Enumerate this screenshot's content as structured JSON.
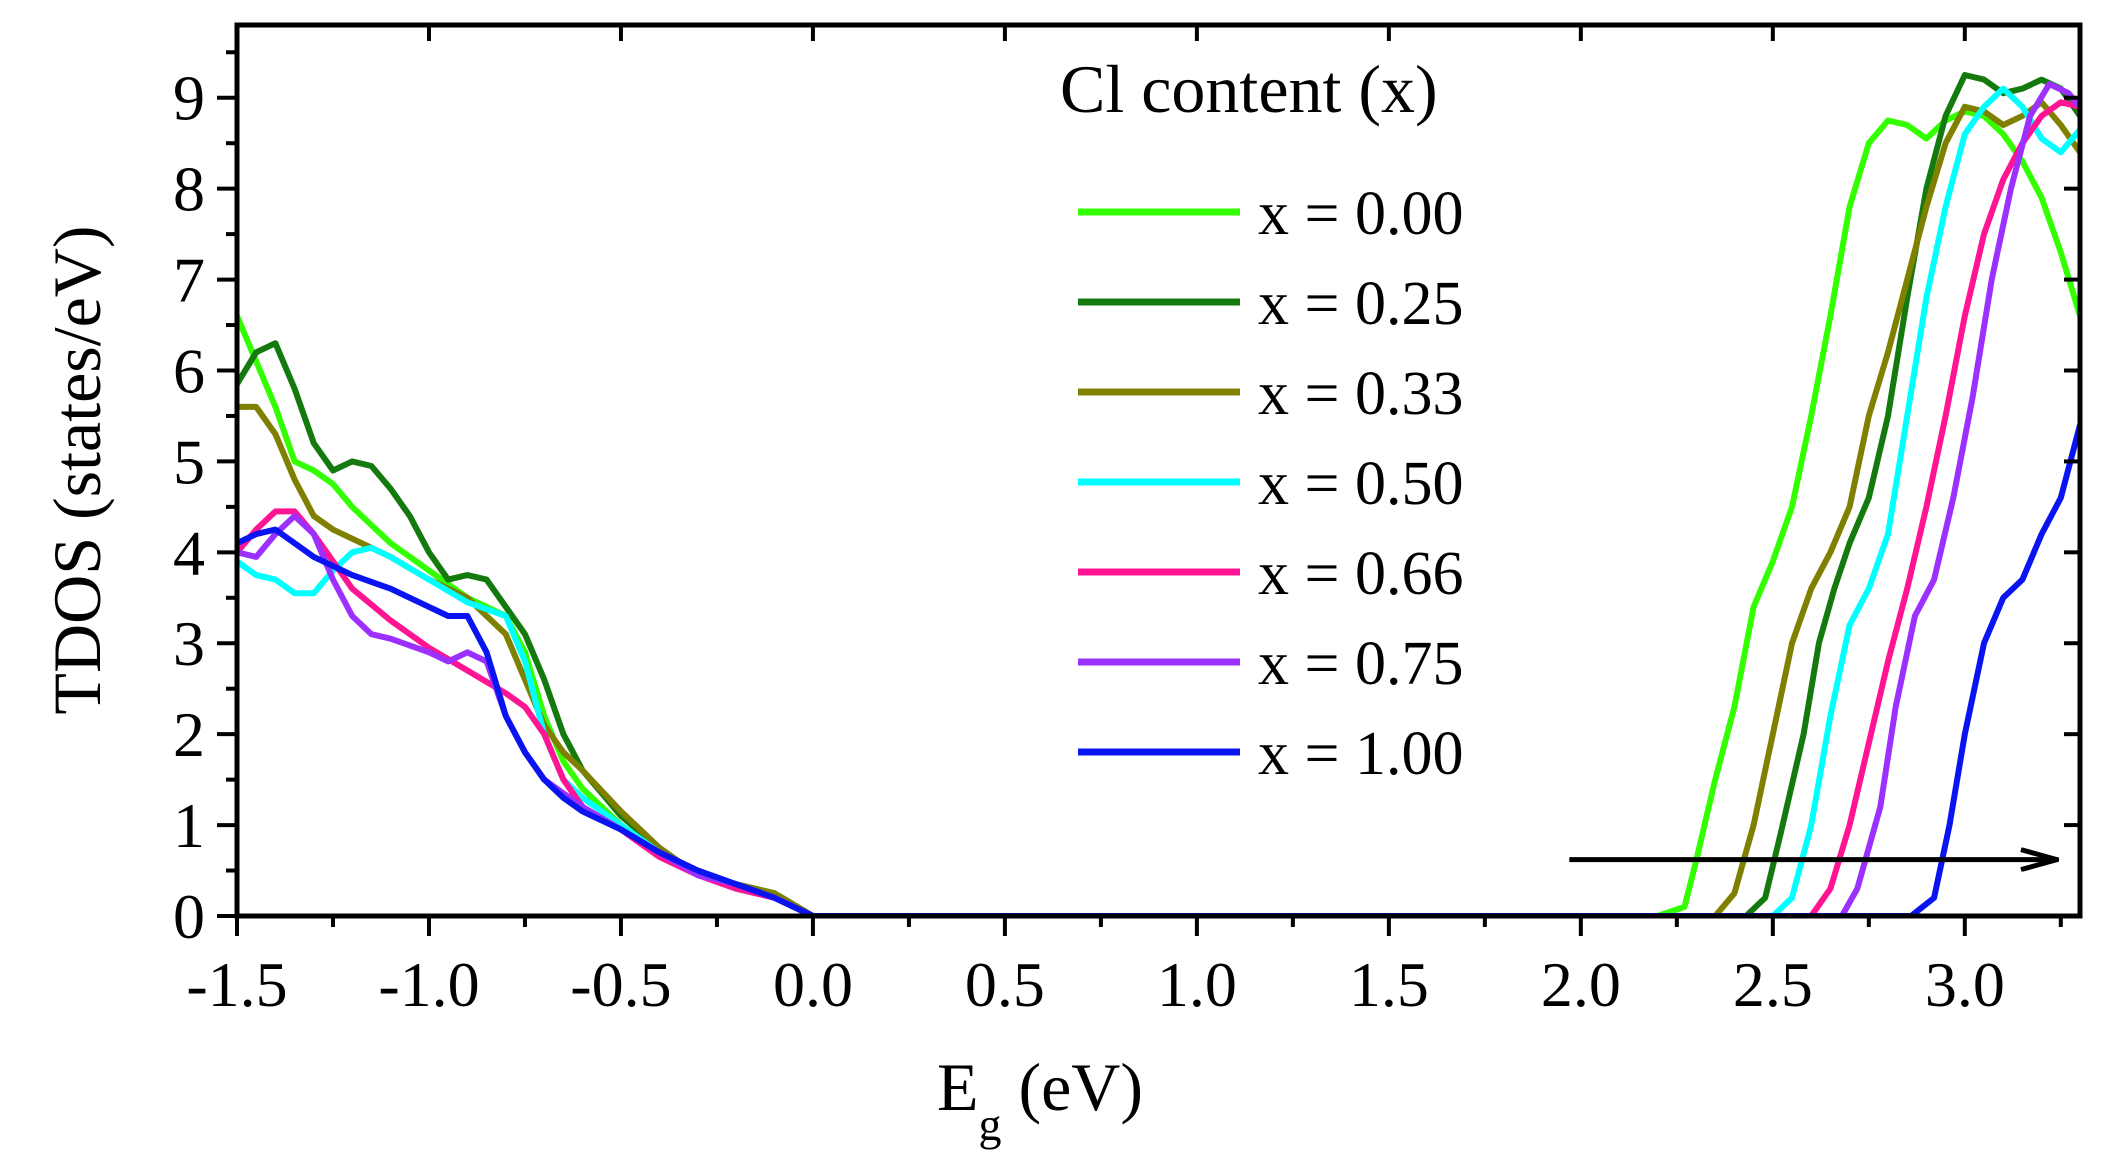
{
  "chart_data": {
    "type": "line",
    "xlabel_main": "E",
    "xlabel_sub": "g",
    "xlabel_unit": " (eV)",
    "ylabel": "TDOS (states/eV)",
    "xlim": [
      -1.5,
      3.3
    ],
    "ylim": [
      0,
      9.8
    ],
    "x_ticks": [
      -1.5,
      -1.0,
      -0.5,
      0.0,
      0.5,
      1.0,
      1.5,
      2.0,
      2.5,
      3.0
    ],
    "x_tick_labels": [
      "-1.5",
      "-1.0",
      "-0.5",
      "0.0",
      "0.5",
      "1.0",
      "1.5",
      "2.0",
      "2.5",
      "3.0"
    ],
    "x_minor_ticks": [
      -1.25,
      -0.75,
      -0.25,
      0.25,
      0.75,
      1.25,
      1.75,
      2.25,
      2.75,
      3.25
    ],
    "y_ticks": [
      0,
      1,
      2,
      3,
      4,
      5,
      6,
      7,
      8,
      9
    ],
    "y_tick_labels": [
      "0",
      "1",
      "2",
      "3",
      "4",
      "5",
      "6",
      "7",
      "8",
      "9"
    ],
    "y_minor_ticks": [
      0.5,
      1.5,
      2.5,
      3.5,
      4.5,
      5.5,
      6.5,
      7.5,
      8.5,
      9.5
    ],
    "legend_title": "Cl content (x)",
    "legend_position": "top-center",
    "annotation": {
      "type": "arrow",
      "from": [
        1.97,
        0.62
      ],
      "to": [
        3.24,
        0.62
      ],
      "color": "#000000"
    },
    "series": [
      {
        "name": "x = 0.00",
        "color": "#33ff00",
        "points": [
          [
            -1.5,
            6.6
          ],
          [
            -1.45,
            6.1
          ],
          [
            -1.4,
            5.6
          ],
          [
            -1.35,
            5.0
          ],
          [
            -1.3,
            4.9
          ],
          [
            -1.25,
            4.75
          ],
          [
            -1.2,
            4.5
          ],
          [
            -1.1,
            4.1
          ],
          [
            -1.0,
            3.8
          ],
          [
            -0.9,
            3.5
          ],
          [
            -0.8,
            3.3
          ],
          [
            -0.75,
            2.9
          ],
          [
            -0.7,
            2.2
          ],
          [
            -0.65,
            1.7
          ],
          [
            -0.6,
            1.4
          ],
          [
            -0.5,
            1.0
          ],
          [
            -0.4,
            0.7
          ],
          [
            -0.3,
            0.45
          ],
          [
            -0.2,
            0.35
          ],
          [
            -0.1,
            0.2
          ],
          [
            0.0,
            0.0
          ],
          [
            2.2,
            0.0
          ],
          [
            2.27,
            0.1
          ],
          [
            2.3,
            0.6
          ],
          [
            2.35,
            1.5
          ],
          [
            2.4,
            2.3
          ],
          [
            2.45,
            3.4
          ],
          [
            2.5,
            3.9
          ],
          [
            2.55,
            4.5
          ],
          [
            2.6,
            5.5
          ],
          [
            2.65,
            6.6
          ],
          [
            2.7,
            7.8
          ],
          [
            2.75,
            8.5
          ],
          [
            2.8,
            8.75
          ],
          [
            2.85,
            8.7
          ],
          [
            2.9,
            8.55
          ],
          [
            2.95,
            8.75
          ],
          [
            3.0,
            8.85
          ],
          [
            3.05,
            8.8
          ],
          [
            3.1,
            8.6
          ],
          [
            3.15,
            8.3
          ],
          [
            3.2,
            7.9
          ],
          [
            3.25,
            7.3
          ],
          [
            3.3,
            6.6
          ]
        ]
      },
      {
        "name": "x = 0.25",
        "color": "#157a0e",
        "points": [
          [
            -1.5,
            5.85
          ],
          [
            -1.45,
            6.2
          ],
          [
            -1.4,
            6.3
          ],
          [
            -1.35,
            5.8
          ],
          [
            -1.3,
            5.2
          ],
          [
            -1.25,
            4.9
          ],
          [
            -1.2,
            5.0
          ],
          [
            -1.15,
            4.95
          ],
          [
            -1.1,
            4.7
          ],
          [
            -1.05,
            4.4
          ],
          [
            -1.0,
            4.0
          ],
          [
            -0.95,
            3.7
          ],
          [
            -0.9,
            3.75
          ],
          [
            -0.85,
            3.7
          ],
          [
            -0.8,
            3.4
          ],
          [
            -0.75,
            3.1
          ],
          [
            -0.7,
            2.6
          ],
          [
            -0.65,
            2.0
          ],
          [
            -0.6,
            1.6
          ],
          [
            -0.5,
            1.1
          ],
          [
            -0.4,
            0.75
          ],
          [
            -0.3,
            0.45
          ],
          [
            -0.2,
            0.35
          ],
          [
            -0.1,
            0.25
          ],
          [
            0.0,
            0.0
          ],
          [
            2.43,
            0.0
          ],
          [
            2.48,
            0.2
          ],
          [
            2.52,
            0.9
          ],
          [
            2.58,
            2.0
          ],
          [
            2.62,
            3.0
          ],
          [
            2.66,
            3.6
          ],
          [
            2.7,
            4.1
          ],
          [
            2.75,
            4.6
          ],
          [
            2.8,
            5.5
          ],
          [
            2.85,
            6.8
          ],
          [
            2.9,
            8.0
          ],
          [
            2.95,
            8.8
          ],
          [
            3.0,
            9.25
          ],
          [
            3.05,
            9.2
          ],
          [
            3.1,
            9.05
          ],
          [
            3.15,
            9.1
          ],
          [
            3.2,
            9.2
          ],
          [
            3.25,
            9.1
          ],
          [
            3.3,
            8.8
          ]
        ]
      },
      {
        "name": "x = 0.33",
        "color": "#808000",
        "points": [
          [
            -1.5,
            5.6
          ],
          [
            -1.45,
            5.6
          ],
          [
            -1.4,
            5.3
          ],
          [
            -1.35,
            4.8
          ],
          [
            -1.3,
            4.4
          ],
          [
            -1.25,
            4.25
          ],
          [
            -1.2,
            4.15
          ],
          [
            -1.1,
            3.95
          ],
          [
            -1.0,
            3.7
          ],
          [
            -0.9,
            3.5
          ],
          [
            -0.8,
            3.1
          ],
          [
            -0.75,
            2.6
          ],
          [
            -0.7,
            2.1
          ],
          [
            -0.65,
            1.8
          ],
          [
            -0.6,
            1.6
          ],
          [
            -0.5,
            1.15
          ],
          [
            -0.4,
            0.75
          ],
          [
            -0.3,
            0.45
          ],
          [
            -0.2,
            0.35
          ],
          [
            -0.1,
            0.25
          ],
          [
            0.0,
            0.0
          ],
          [
            2.35,
            0.0
          ],
          [
            2.4,
            0.25
          ],
          [
            2.45,
            1.0
          ],
          [
            2.5,
            2.0
          ],
          [
            2.55,
            3.0
          ],
          [
            2.6,
            3.6
          ],
          [
            2.65,
            4.0
          ],
          [
            2.7,
            4.5
          ],
          [
            2.75,
            5.5
          ],
          [
            2.8,
            6.2
          ],
          [
            2.85,
            7.0
          ],
          [
            2.9,
            7.8
          ],
          [
            2.95,
            8.5
          ],
          [
            3.0,
            8.9
          ],
          [
            3.05,
            8.85
          ],
          [
            3.1,
            8.7
          ],
          [
            3.15,
            8.8
          ],
          [
            3.2,
            8.95
          ],
          [
            3.25,
            8.7
          ],
          [
            3.3,
            8.4
          ]
        ]
      },
      {
        "name": "x = 0.50",
        "color": "#00ffff",
        "points": [
          [
            -1.5,
            3.9
          ],
          [
            -1.45,
            3.75
          ],
          [
            -1.4,
            3.7
          ],
          [
            -1.35,
            3.55
          ],
          [
            -1.3,
            3.55
          ],
          [
            -1.25,
            3.8
          ],
          [
            -1.2,
            4.0
          ],
          [
            -1.15,
            4.05
          ],
          [
            -1.1,
            3.95
          ],
          [
            -1.0,
            3.7
          ],
          [
            -0.9,
            3.45
          ],
          [
            -0.8,
            3.3
          ],
          [
            -0.75,
            2.8
          ],
          [
            -0.7,
            2.0
          ],
          [
            -0.65,
            1.5
          ],
          [
            -0.6,
            1.3
          ],
          [
            -0.5,
            1.0
          ],
          [
            -0.4,
            0.7
          ],
          [
            -0.3,
            0.45
          ],
          [
            -0.2,
            0.3
          ],
          [
            -0.1,
            0.2
          ],
          [
            0.0,
            0.0
          ],
          [
            2.5,
            0.0
          ],
          [
            2.55,
            0.2
          ],
          [
            2.6,
            1.0
          ],
          [
            2.65,
            2.2
          ],
          [
            2.7,
            3.2
          ],
          [
            2.75,
            3.6
          ],
          [
            2.8,
            4.2
          ],
          [
            2.85,
            5.5
          ],
          [
            2.9,
            6.8
          ],
          [
            2.95,
            7.8
          ],
          [
            3.0,
            8.6
          ],
          [
            3.05,
            8.9
          ],
          [
            3.1,
            9.1
          ],
          [
            3.15,
            8.9
          ],
          [
            3.2,
            8.55
          ],
          [
            3.25,
            8.4
          ],
          [
            3.3,
            8.65
          ]
        ]
      },
      {
        "name": "x = 0.66",
        "color": "#ff1493",
        "points": [
          [
            -1.5,
            4.0
          ],
          [
            -1.45,
            4.25
          ],
          [
            -1.4,
            4.45
          ],
          [
            -1.35,
            4.45
          ],
          [
            -1.3,
            4.2
          ],
          [
            -1.25,
            3.9
          ],
          [
            -1.2,
            3.6
          ],
          [
            -1.1,
            3.25
          ],
          [
            -1.0,
            2.95
          ],
          [
            -0.9,
            2.7
          ],
          [
            -0.8,
            2.45
          ],
          [
            -0.75,
            2.3
          ],
          [
            -0.7,
            2.0
          ],
          [
            -0.65,
            1.5
          ],
          [
            -0.6,
            1.2
          ],
          [
            -0.5,
            0.95
          ],
          [
            -0.4,
            0.65
          ],
          [
            -0.3,
            0.45
          ],
          [
            -0.2,
            0.3
          ],
          [
            -0.1,
            0.2
          ],
          [
            0.0,
            0.0
          ],
          [
            2.6,
            0.0
          ],
          [
            2.65,
            0.3
          ],
          [
            2.7,
            1.0
          ],
          [
            2.75,
            1.9
          ],
          [
            2.8,
            2.8
          ],
          [
            2.85,
            3.6
          ],
          [
            2.9,
            4.5
          ],
          [
            2.95,
            5.5
          ],
          [
            3.0,
            6.6
          ],
          [
            3.05,
            7.5
          ],
          [
            3.1,
            8.1
          ],
          [
            3.15,
            8.5
          ],
          [
            3.2,
            8.8
          ],
          [
            3.25,
            8.95
          ],
          [
            3.3,
            8.9
          ]
        ]
      },
      {
        "name": "x = 0.75",
        "color": "#9b30ff",
        "points": [
          [
            -1.5,
            4.0
          ],
          [
            -1.45,
            3.95
          ],
          [
            -1.4,
            4.2
          ],
          [
            -1.35,
            4.4
          ],
          [
            -1.3,
            4.2
          ],
          [
            -1.25,
            3.7
          ],
          [
            -1.2,
            3.3
          ],
          [
            -1.15,
            3.1
          ],
          [
            -1.1,
            3.05
          ],
          [
            -1.0,
            2.9
          ],
          [
            -0.95,
            2.8
          ],
          [
            -0.9,
            2.9
          ],
          [
            -0.85,
            2.8
          ],
          [
            -0.8,
            2.2
          ],
          [
            -0.75,
            1.8
          ],
          [
            -0.7,
            1.5
          ],
          [
            -0.6,
            1.2
          ],
          [
            -0.5,
            0.95
          ],
          [
            -0.4,
            0.7
          ],
          [
            -0.3,
            0.45
          ],
          [
            -0.2,
            0.35
          ],
          [
            -0.1,
            0.2
          ],
          [
            0.0,
            0.0
          ],
          [
            2.68,
            0.0
          ],
          [
            2.72,
            0.3
          ],
          [
            2.78,
            1.2
          ],
          [
            2.82,
            2.3
          ],
          [
            2.87,
            3.3
          ],
          [
            2.92,
            3.7
          ],
          [
            2.97,
            4.6
          ],
          [
            3.02,
            5.7
          ],
          [
            3.07,
            7.0
          ],
          [
            3.12,
            8.0
          ],
          [
            3.17,
            8.8
          ],
          [
            3.22,
            9.15
          ],
          [
            3.27,
            9.05
          ],
          [
            3.3,
            8.9
          ]
        ]
      },
      {
        "name": "x = 1.00",
        "color": "#0a14f0",
        "points": [
          [
            -1.5,
            4.1
          ],
          [
            -1.45,
            4.2
          ],
          [
            -1.4,
            4.25
          ],
          [
            -1.35,
            4.1
          ],
          [
            -1.3,
            3.95
          ],
          [
            -1.2,
            3.75
          ],
          [
            -1.1,
            3.6
          ],
          [
            -1.0,
            3.4
          ],
          [
            -0.95,
            3.3
          ],
          [
            -0.9,
            3.3
          ],
          [
            -0.85,
            2.9
          ],
          [
            -0.8,
            2.2
          ],
          [
            -0.75,
            1.8
          ],
          [
            -0.7,
            1.5
          ],
          [
            -0.65,
            1.3
          ],
          [
            -0.6,
            1.15
          ],
          [
            -0.5,
            0.95
          ],
          [
            -0.4,
            0.7
          ],
          [
            -0.3,
            0.5
          ],
          [
            -0.2,
            0.35
          ],
          [
            -0.1,
            0.2
          ],
          [
            0.0,
            0.0
          ],
          [
            2.86,
            0.0
          ],
          [
            2.92,
            0.2
          ],
          [
            2.96,
            1.0
          ],
          [
            3.0,
            2.0
          ],
          [
            3.05,
            3.0
          ],
          [
            3.1,
            3.5
          ],
          [
            3.15,
            3.7
          ],
          [
            3.2,
            4.2
          ],
          [
            3.25,
            4.6
          ],
          [
            3.3,
            5.4
          ]
        ]
      }
    ]
  }
}
